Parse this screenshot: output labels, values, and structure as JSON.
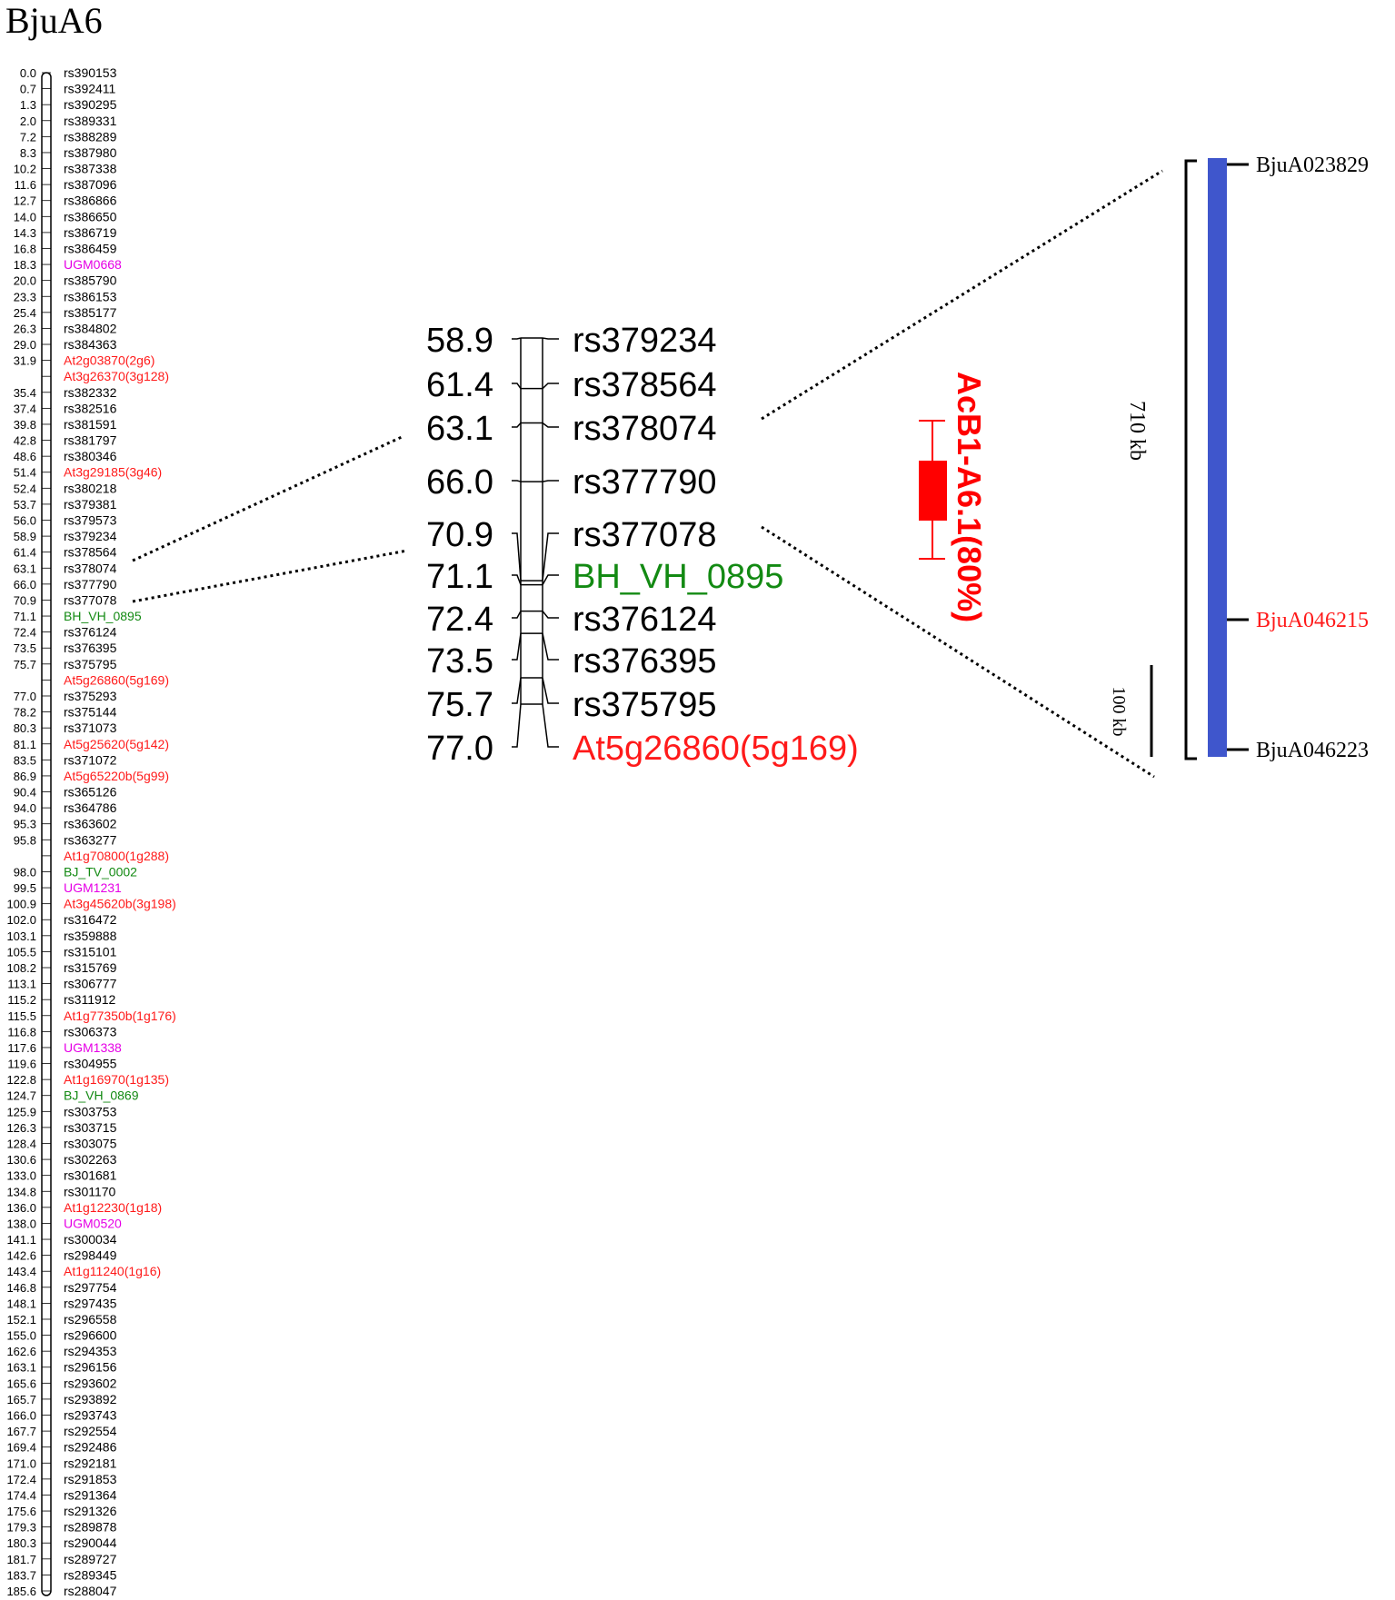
{
  "title": "BjuA6",
  "colors": {
    "default": "#000000",
    "red": "#ff1a1a",
    "magenta": "#e600e6",
    "green": "#138a13",
    "blue": "#3f56cc",
    "qtl": "#ff0000"
  },
  "full_map": {
    "markers": [
      {
        "pos": "0.0",
        "name": "rs390153",
        "color": "default"
      },
      {
        "pos": "0.7",
        "name": "rs392411",
        "color": "default"
      },
      {
        "pos": "1.3",
        "name": "rs390295",
        "color": "default"
      },
      {
        "pos": "2.0",
        "name": "rs389331",
        "color": "default"
      },
      {
        "pos": "7.2",
        "name": "rs388289",
        "color": "default"
      },
      {
        "pos": "8.3",
        "name": "rs387980",
        "color": "default"
      },
      {
        "pos": "10.2",
        "name": "rs387338",
        "color": "default"
      },
      {
        "pos": "11.6",
        "name": "rs387096",
        "color": "default"
      },
      {
        "pos": "12.7",
        "name": "rs386866",
        "color": "default"
      },
      {
        "pos": "14.0",
        "name": "rs386650",
        "color": "default"
      },
      {
        "pos": "14.3",
        "name": "rs386719",
        "color": "default"
      },
      {
        "pos": "16.8",
        "name": "rs386459",
        "color": "default"
      },
      {
        "pos": "18.3",
        "name": "UGM0668",
        "color": "magenta"
      },
      {
        "pos": "20.0",
        "name": "rs385790",
        "color": "default"
      },
      {
        "pos": "23.3",
        "name": "rs386153",
        "color": "default"
      },
      {
        "pos": "25.4",
        "name": "rs385177",
        "color": "default"
      },
      {
        "pos": "26.3",
        "name": "rs384802",
        "color": "default"
      },
      {
        "pos": "29.0",
        "name": "rs384363",
        "color": "default"
      },
      {
        "pos": "31.9",
        "name": "At2g03870(2g6)",
        "color": "red"
      },
      {
        "pos": "",
        "name": "At3g26370(3g128)",
        "color": "red"
      },
      {
        "pos": "35.4",
        "name": "rs382332",
        "color": "default"
      },
      {
        "pos": "37.4",
        "name": "rs382516",
        "color": "default"
      },
      {
        "pos": "39.8",
        "name": "rs381591",
        "color": "default"
      },
      {
        "pos": "42.8",
        "name": "rs381797",
        "color": "default"
      },
      {
        "pos": "48.6",
        "name": "rs380346",
        "color": "default"
      },
      {
        "pos": "51.4",
        "name": "At3g29185(3g46)",
        "color": "red"
      },
      {
        "pos": "52.4",
        "name": "rs380218",
        "color": "default"
      },
      {
        "pos": "53.7",
        "name": "rs379381",
        "color": "default"
      },
      {
        "pos": "56.0",
        "name": "rs379573",
        "color": "default"
      },
      {
        "pos": "58.9",
        "name": "rs379234",
        "color": "default"
      },
      {
        "pos": "61.4",
        "name": "rs378564",
        "color": "default"
      },
      {
        "pos": "63.1",
        "name": "rs378074",
        "color": "default"
      },
      {
        "pos": "66.0",
        "name": "rs377790",
        "color": "default"
      },
      {
        "pos": "70.9",
        "name": "rs377078",
        "color": "default"
      },
      {
        "pos": "71.1",
        "name": "BH_VH_0895",
        "color": "green"
      },
      {
        "pos": "72.4",
        "name": "rs376124",
        "color": "default"
      },
      {
        "pos": "73.5",
        "name": "rs376395",
        "color": "default"
      },
      {
        "pos": "75.7",
        "name": "rs375795",
        "color": "default"
      },
      {
        "pos": "",
        "name": "At5g26860(5g169)",
        "color": "red"
      },
      {
        "pos": "77.0",
        "name": "rs375293",
        "color": "default"
      },
      {
        "pos": "78.2",
        "name": "rs375144",
        "color": "default"
      },
      {
        "pos": "80.3",
        "name": "rs371073",
        "color": "default"
      },
      {
        "pos": "81.1",
        "name": "At5g25620(5g142)",
        "color": "red"
      },
      {
        "pos": "83.5",
        "name": "rs371072",
        "color": "default"
      },
      {
        "pos": "86.9",
        "name": "At5g65220b(5g99)",
        "color": "red"
      },
      {
        "pos": "90.4",
        "name": "rs365126",
        "color": "default"
      },
      {
        "pos": "94.0",
        "name": "rs364786",
        "color": "default"
      },
      {
        "pos": "95.3",
        "name": "rs363602",
        "color": "default"
      },
      {
        "pos": "95.8",
        "name": "rs363277",
        "color": "default"
      },
      {
        "pos": "",
        "name": "At1g70800(1g288)",
        "color": "red"
      },
      {
        "pos": "98.0",
        "name": "BJ_TV_0002",
        "color": "green"
      },
      {
        "pos": "99.5",
        "name": "UGM1231",
        "color": "magenta"
      },
      {
        "pos": "100.9",
        "name": "At3g45620b(3g198)",
        "color": "red"
      },
      {
        "pos": "102.0",
        "name": "rs316472",
        "color": "default"
      },
      {
        "pos": "103.1",
        "name": "rs359888",
        "color": "default"
      },
      {
        "pos": "105.5",
        "name": "rs315101",
        "color": "default"
      },
      {
        "pos": "108.2",
        "name": "rs315769",
        "color": "default"
      },
      {
        "pos": "113.1",
        "name": "rs306777",
        "color": "default"
      },
      {
        "pos": "115.2",
        "name": "rs311912",
        "color": "default"
      },
      {
        "pos": "115.5",
        "name": "At1g77350b(1g176)",
        "color": "red"
      },
      {
        "pos": "116.8",
        "name": "rs306373",
        "color": "default"
      },
      {
        "pos": "117.6",
        "name": "UGM1338",
        "color": "magenta"
      },
      {
        "pos": "119.6",
        "name": "rs304955",
        "color": "default"
      },
      {
        "pos": "122.8",
        "name": "At1g16970(1g135)",
        "color": "red"
      },
      {
        "pos": "124.7",
        "name": "BJ_VH_0869",
        "color": "green"
      },
      {
        "pos": "125.9",
        "name": "rs303753",
        "color": "default"
      },
      {
        "pos": "126.3",
        "name": "rs303715",
        "color": "default"
      },
      {
        "pos": "128.4",
        "name": "rs303075",
        "color": "default"
      },
      {
        "pos": "130.6",
        "name": "rs302263",
        "color": "default"
      },
      {
        "pos": "133.0",
        "name": "rs301681",
        "color": "default"
      },
      {
        "pos": "134.8",
        "name": "rs301170",
        "color": "default"
      },
      {
        "pos": "136.0",
        "name": "At1g12230(1g18)",
        "color": "red"
      },
      {
        "pos": "138.0",
        "name": "UGM0520",
        "color": "magenta"
      },
      {
        "pos": "141.1",
        "name": "rs300034",
        "color": "default"
      },
      {
        "pos": "142.6",
        "name": "rs298449",
        "color": "default"
      },
      {
        "pos": "143.4",
        "name": "At1g11240(1g16)",
        "color": "red"
      },
      {
        "pos": "146.8",
        "name": "rs297754",
        "color": "default"
      },
      {
        "pos": "148.1",
        "name": "rs297435",
        "color": "default"
      },
      {
        "pos": "152.1",
        "name": "rs296558",
        "color": "default"
      },
      {
        "pos": "155.0",
        "name": "rs296600",
        "color": "default"
      },
      {
        "pos": "162.6",
        "name": "rs294353",
        "color": "default"
      },
      {
        "pos": "163.1",
        "name": "rs296156",
        "color": "default"
      },
      {
        "pos": "165.6",
        "name": "rs293602",
        "color": "default"
      },
      {
        "pos": "165.7",
        "name": "rs293892",
        "color": "default"
      },
      {
        "pos": "166.0",
        "name": "rs293743",
        "color": "default"
      },
      {
        "pos": "167.7",
        "name": "rs292554",
        "color": "default"
      },
      {
        "pos": "169.4",
        "name": "rs292486",
        "color": "default"
      },
      {
        "pos": "171.0",
        "name": "rs292181",
        "color": "default"
      },
      {
        "pos": "172.4",
        "name": "rs291853",
        "color": "default"
      },
      {
        "pos": "174.4",
        "name": "rs291364",
        "color": "default"
      },
      {
        "pos": "175.6",
        "name": "rs291326",
        "color": "default"
      },
      {
        "pos": "179.3",
        "name": "rs289878",
        "color": "default"
      },
      {
        "pos": "180.3",
        "name": "rs290044",
        "color": "default"
      },
      {
        "pos": "181.7",
        "name": "rs289727",
        "color": "default"
      },
      {
        "pos": "183.7",
        "name": "rs289345",
        "color": "default"
      },
      {
        "pos": "185.6",
        "name": "rs288047",
        "color": "default"
      }
    ]
  },
  "zoom_map": {
    "markers": [
      {
        "pos": "58.9",
        "name": "rs379234",
        "color": "default"
      },
      {
        "pos": "61.4",
        "name": "rs378564",
        "color": "default"
      },
      {
        "pos": "63.1",
        "name": "rs378074",
        "color": "default"
      },
      {
        "pos": "66.0",
        "name": "rs377790",
        "color": "default"
      },
      {
        "pos": "70.9",
        "name": "rs377078",
        "color": "default"
      },
      {
        "pos": "71.1",
        "name": "BH_VH_0895",
        "color": "green"
      },
      {
        "pos": "72.4",
        "name": "rs376124",
        "color": "default"
      },
      {
        "pos": "73.5",
        "name": "rs376395",
        "color": "default"
      },
      {
        "pos": "75.7",
        "name": "rs375795",
        "color": "default"
      },
      {
        "pos": "77.0",
        "name": "At5g26860(5g169)",
        "color": "red"
      }
    ]
  },
  "qtl": {
    "label": "AcB1-A6.1(80%)",
    "color": "qtl"
  },
  "physical_map": {
    "span_label": "710 kb",
    "scale_label": "100 kb",
    "genes": [
      {
        "name": "BjuA023829",
        "color": "default"
      },
      {
        "name": "BjuA046215",
        "color": "red"
      },
      {
        "name": "BjuA046223",
        "color": "default"
      }
    ],
    "bar_color": "blue"
  }
}
